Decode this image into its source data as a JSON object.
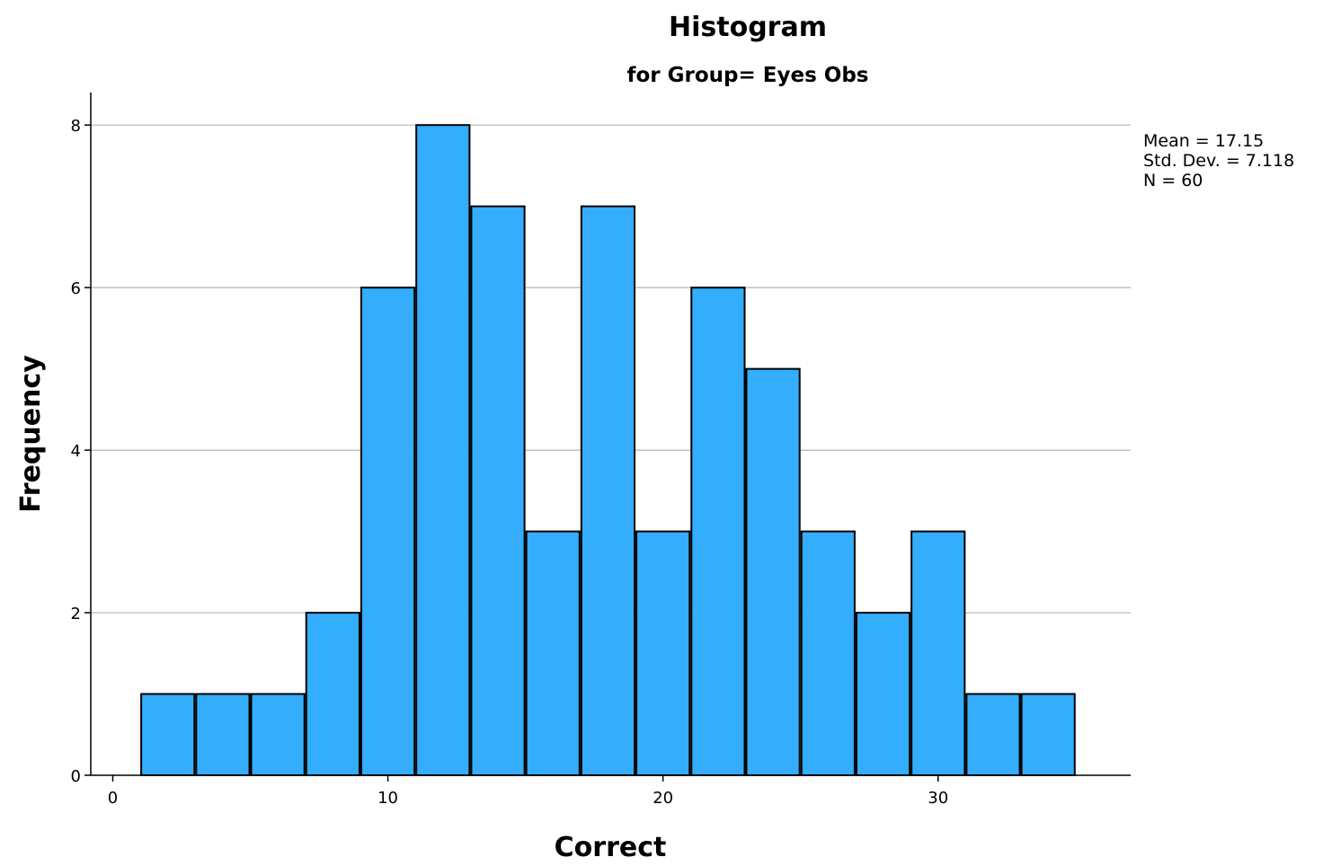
{
  "chart_data": {
    "type": "bar",
    "title": "Histogram",
    "subtitle": "for Group= Eyes Obs",
    "xlabel": "Correct",
    "ylabel": "Frequency",
    "bin_width": 2,
    "bins": [
      {
        "x0": 1,
        "x1": 3,
        "count": 1
      },
      {
        "x0": 3,
        "x1": 5,
        "count": 1
      },
      {
        "x0": 5,
        "x1": 7,
        "count": 1
      },
      {
        "x0": 7,
        "x1": 9,
        "count": 2
      },
      {
        "x0": 9,
        "x1": 11,
        "count": 6
      },
      {
        "x0": 11,
        "x1": 13,
        "count": 8
      },
      {
        "x0": 13,
        "x1": 15,
        "count": 7
      },
      {
        "x0": 15,
        "x1": 17,
        "count": 3
      },
      {
        "x0": 17,
        "x1": 19,
        "count": 7
      },
      {
        "x0": 19,
        "x1": 21,
        "count": 3
      },
      {
        "x0": 21,
        "x1": 23,
        "count": 6
      },
      {
        "x0": 23,
        "x1": 25,
        "count": 5
      },
      {
        "x0": 25,
        "x1": 27,
        "count": 3
      },
      {
        "x0": 27,
        "x1": 29,
        "count": 2
      },
      {
        "x0": 29,
        "x1": 31,
        "count": 3
      },
      {
        "x0": 31,
        "x1": 33,
        "count": 1
      },
      {
        "x0": 33,
        "x1": 35,
        "count": 1
      }
    ],
    "xlim": [
      -0.8,
      37
    ],
    "ylim": [
      0,
      8.4
    ],
    "xticks": [
      0,
      10,
      20,
      30
    ],
    "yticks": [
      0,
      2,
      4,
      6,
      8
    ],
    "grid": "horizontal",
    "colors": {
      "bar_fill": "#33adfc",
      "bar_stroke": "#000000",
      "grid": "#b4b4b4"
    },
    "stats": {
      "mean_text": "Mean = 17.15",
      "sd_text": "Std. Dev. = 7.118",
      "n_text": "N = 60"
    }
  }
}
